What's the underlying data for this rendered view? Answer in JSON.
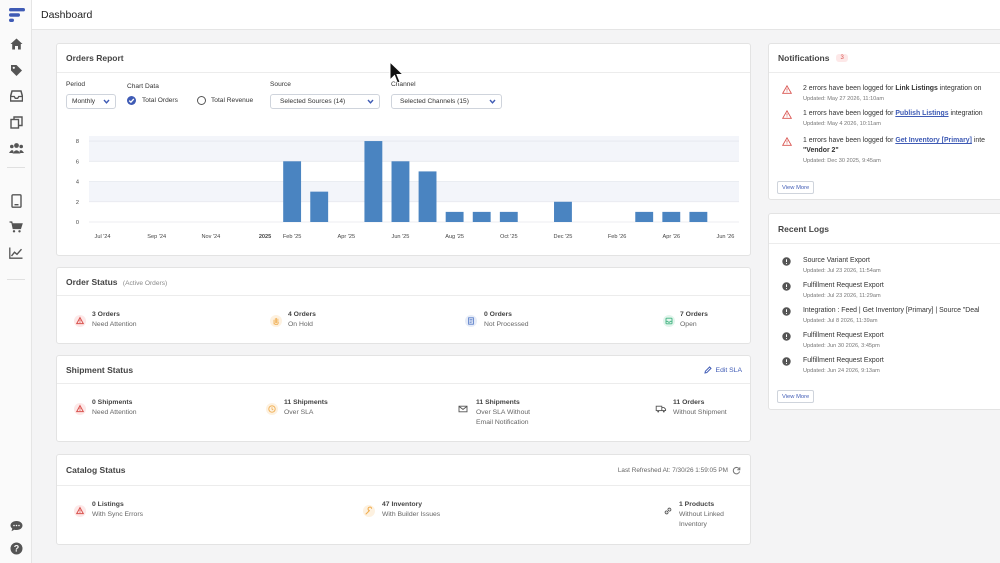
{
  "header": {
    "title": "Dashboard"
  },
  "sidebar": {
    "icons": [
      "home-icon",
      "tag-icon",
      "inbox-icon",
      "copy-icon",
      "users-icon",
      "device-icon",
      "cart-icon",
      "trending-icon",
      "chat-icon",
      "help-icon"
    ]
  },
  "orders_report": {
    "title": "Orders Report",
    "period_label": "Period",
    "period_value": "Monthly",
    "chart_data_label": "Chart Data",
    "option_orders": "Total Orders",
    "option_revenue": "Total Revenue",
    "source_label": "Source",
    "source_value": "Selected Sources (14)",
    "channel_label": "Channel",
    "channel_value": "Selected Channels (15)"
  },
  "chart_data": {
    "type": "bar",
    "categories": [
      "Jul '24",
      "Aug '24",
      "Sep '24",
      "Oct '24",
      "Nov '24",
      "Dec '24",
      "2025",
      "Feb '25",
      "Mar '25",
      "Apr '25",
      "May '25",
      "Jun '25",
      "Jul '25",
      "Aug '25",
      "Sep '25",
      "Oct '25",
      "Nov '25",
      "Dec '25",
      "Jan '26",
      "Feb '26",
      "Mar '26",
      "Apr '26",
      "May '26",
      "Jun '26"
    ],
    "tick_labels": [
      "Jul '24",
      "",
      "Sep '24",
      "",
      "Nov '24",
      "",
      "2025",
      "Feb '25",
      "",
      "Apr '25",
      "",
      "Jun '25",
      "",
      "Aug '25",
      "",
      "Oct '25",
      "",
      "Dec '25",
      "",
      "Feb '26",
      "",
      "Apr '26",
      "",
      "Jun '26"
    ],
    "values": [
      0,
      0,
      0,
      0,
      0,
      0,
      0,
      6,
      3,
      0,
      8,
      6,
      5,
      1,
      1,
      1,
      0,
      2,
      0,
      0,
      1,
      1,
      1,
      0
    ],
    "y_ticks": [
      0,
      2,
      4,
      6,
      8
    ],
    "ylim": [
      0,
      8.5
    ],
    "bar_color": "#4a84c1",
    "grid": true
  },
  "order_status": {
    "title": "Order Status",
    "subtitle": "(Active Orders)",
    "items": [
      {
        "value": "3 Orders",
        "label": "Need Attention",
        "icon": "warning-icon",
        "color": "#d9534f"
      },
      {
        "value": "4 Orders",
        "label": "On Hold",
        "icon": "hand-icon",
        "color": "#f0ad4e"
      },
      {
        "value": "0 Orders",
        "label": "Not Processed",
        "icon": "document-icon",
        "color": "#5b7fc9"
      },
      {
        "value": "7 Orders",
        "label": "Open",
        "icon": "inbox-icon",
        "color": "#3fb27f"
      }
    ]
  },
  "shipment_status": {
    "title": "Shipment Status",
    "edit_label": "Edit SLA",
    "items": [
      {
        "value": "0 Shipments",
        "label": "Need Attention",
        "icon": "warning-icon",
        "color": "#d9534f"
      },
      {
        "value": "11 Shipments",
        "label": "Over SLA",
        "icon": "clock-icon",
        "color": "#f0ad4e"
      },
      {
        "value": "11 Shipments",
        "label": "Over SLA Without",
        "label2": "Email Notification",
        "icon": "mail-icon",
        "color": "#555555"
      },
      {
        "value": "11 Orders",
        "label": "Without Shipment",
        "icon": "truck-icon",
        "color": "#555555"
      }
    ]
  },
  "catalog_status": {
    "title": "Catalog Status",
    "refreshed": "Last Refreshed At: 7/30/26 1:59:05 PM",
    "items": [
      {
        "value": "0 Listings",
        "label": "With Sync Errors",
        "icon": "warning-icon",
        "color": "#d9534f"
      },
      {
        "value": "47 Inventory",
        "label": "With Builder Issues",
        "icon": "wrench-icon",
        "color": "#f0ad4e"
      },
      {
        "value": "1 Products",
        "label": "Without Linked",
        "label2": "Inventory",
        "icon": "link-icon",
        "color": "#555555"
      }
    ]
  },
  "notifications": {
    "title": "Notifications",
    "count": "3",
    "items": [
      {
        "pre": "2 errors have been logged for ",
        "link": "Link Listings",
        "post": " integration on",
        "date": "Updated: May 27 2026, 11:10am",
        "link_style": "bold"
      },
      {
        "pre": "1 errors have been logged for ",
        "link": "Publish Listings",
        "post": " integration",
        "date": "Updated: May 4 2026, 10:11am",
        "link_style": "link"
      },
      {
        "pre": "1 errors have been logged for ",
        "link": "Get Inventory [Primary]",
        "post": " inte",
        "line2": "\"Vendor 2\"",
        "date": "Updated: Dec 30 2025, 9:45am",
        "link_style": "link"
      }
    ],
    "view_more": "View More"
  },
  "recent_logs": {
    "title": "Recent Logs",
    "items": [
      {
        "text": "Source Variant Export",
        "date": "Updated: Jul 23 2026, 11:54am"
      },
      {
        "text": "Fulfillment Request Export",
        "date": "Updated: Jul 23 2026, 11:29am"
      },
      {
        "text": "Integration : Feed | Get Inventory [Primary] | Source \"Deal",
        "date": "Updated: Jul 8 2026, 11:39am"
      },
      {
        "text": "Fulfillment Request Export",
        "date": "Updated: Jun 30 2026, 3:45pm"
      },
      {
        "text": "Fulfillment Request Export",
        "date": "Updated: Jun 24 2026, 9:13am"
      }
    ],
    "view_more": "View More"
  }
}
